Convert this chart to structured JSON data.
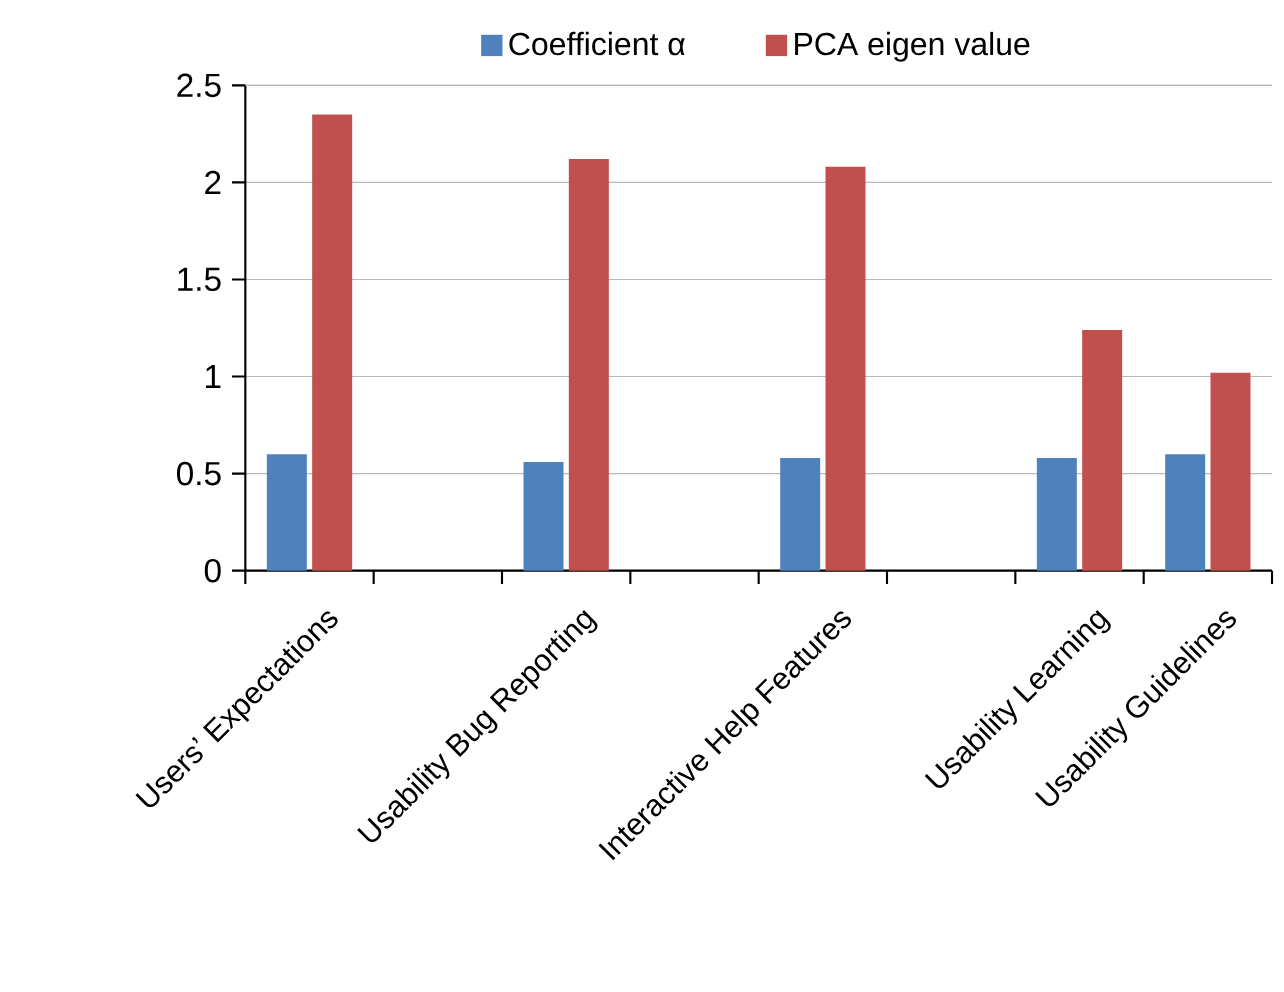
{
  "chart_data": {
    "type": "bar",
    "categories": [
      "Users’ Expectations",
      null,
      "Usability Bug Reporting",
      null,
      "Interactive Help Features",
      null,
      "Usability Learning",
      "Usability Guidelines"
    ],
    "series": [
      {
        "name": "Coefficient  α",
        "color": "#4f81bd",
        "values": [
          0.6,
          null,
          0.56,
          null,
          0.58,
          null,
          0.58,
          0.6
        ]
      },
      {
        "name": "PCA eigen value",
        "color": "#c0504d",
        "values": [
          2.35,
          null,
          2.12,
          null,
          2.08,
          null,
          1.24,
          1.02
        ]
      }
    ],
    "ylim": [
      0,
      2.5
    ],
    "yticks": [
      0,
      0.5,
      1,
      1.5,
      2,
      2.5
    ],
    "grid": "y",
    "legend": "top"
  }
}
